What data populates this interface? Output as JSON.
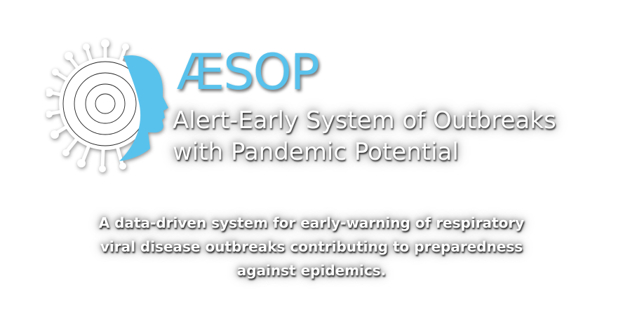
{
  "brand": {
    "name": "ÆSOP",
    "subtitle_line1": "Alert-Early System of Outbreaks",
    "subtitle_line2": "with Pandemic Potential",
    "accent_color": "#59c2ec"
  },
  "tagline": {
    "line1": "A data-driven system for early-warning of respiratory",
    "line2": "viral disease outbreaks contributing to preparedness",
    "line3": "against epidemics."
  },
  "logo": {
    "icon": "virus-head-target-logo"
  }
}
